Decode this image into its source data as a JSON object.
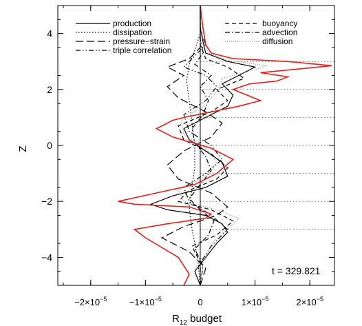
{
  "chart_data": {
    "type": "line",
    "xlabel": "R",
    "xlabel_sub": "12",
    "xlabel_suffix": " budget",
    "ylabel": "Z",
    "xlim": [
      -2.6e-05,
      2.45e-05
    ],
    "ylim": [
      -5,
      5
    ],
    "x_ticks": [
      {
        "value": -2e-05,
        "label_pre": "−2×10",
        "label_exp": "−5"
      },
      {
        "value": -1e-05,
        "label_pre": "−1×10",
        "label_exp": "−5"
      },
      {
        "value": 0,
        "label_pre": "0",
        "label_exp": ""
      },
      {
        "value": 1e-05,
        "label_pre": "1×10",
        "label_exp": "−5"
      },
      {
        "value": 2e-05,
        "label_pre": "2×10",
        "label_exp": "−5"
      }
    ],
    "y_ticks": [
      {
        "value": -4,
        "label": "−4"
      },
      {
        "value": -2,
        "label": "−2"
      },
      {
        "value": 0,
        "label": "0"
      },
      {
        "value": 2,
        "label": "2"
      },
      {
        "value": 4,
        "label": "4"
      }
    ],
    "dotted_hlines": [
      -3,
      -2,
      -1,
      0,
      1,
      2,
      3
    ],
    "annotation": "t = 329.821",
    "legend_placement": "top",
    "series": [
      {
        "name": "production",
        "dash": "solid",
        "color": "#000000",
        "points": [
          [
            0,
            -5
          ],
          [
            -1e-06,
            -4.5
          ],
          [
            1e-06,
            -4
          ],
          [
            3e-06,
            -3.5
          ],
          [
            5e-06,
            -3.1
          ],
          [
            4e-06,
            -2.8
          ],
          [
            1e-06,
            -2.5
          ],
          [
            -6e-06,
            -2.3
          ],
          [
            -9e-06,
            -2.1
          ],
          [
            -5e-06,
            -1.8
          ],
          [
            1e-06,
            -1.5
          ],
          [
            5e-06,
            -1.1
          ],
          [
            4e-06,
            -0.6
          ],
          [
            1e-06,
            -0.2
          ],
          [
            -2e-06,
            0.2
          ],
          [
            -3e-06,
            0.6
          ],
          [
            1e-06,
            1.0
          ],
          [
            5e-06,
            1.4
          ],
          [
            6e-06,
            1.8
          ],
          [
            4e-06,
            2.2
          ],
          [
            7e-06,
            2.5
          ],
          [
            1e-05,
            2.8
          ],
          [
            5e-06,
            3.0
          ],
          [
            1e-06,
            3.3
          ],
          [
            5e-07,
            3.7
          ],
          [
            0,
            4.2
          ],
          [
            0,
            5
          ]
        ]
      },
      {
        "name": "dissipation",
        "dash": "dotted",
        "color": "#000000",
        "points": [
          [
            0,
            -5
          ],
          [
            -5e-07,
            -4
          ],
          [
            -1.5e-06,
            -3
          ],
          [
            -2e-06,
            -2.2
          ],
          [
            -1.5e-06,
            -1.5
          ],
          [
            -1e-06,
            -0.8
          ],
          [
            -1e-06,
            0
          ],
          [
            -1.5e-06,
            0.8
          ],
          [
            -2e-06,
            1.6
          ],
          [
            -2.5e-06,
            2.3
          ],
          [
            -2e-06,
            2.9
          ],
          [
            -1e-06,
            3.4
          ],
          [
            0,
            4
          ],
          [
            0,
            5
          ]
        ]
      },
      {
        "name": "pressure−strain",
        "dash": "longdash",
        "color": "#000000",
        "points": [
          [
            0,
            -5
          ],
          [
            1e-06,
            -4.4
          ],
          [
            -2e-06,
            -3.8
          ],
          [
            -7e-06,
            -3.3
          ],
          [
            -3e-06,
            -2.9
          ],
          [
            3e-06,
            -2.5
          ],
          [
            5e-06,
            -2.2
          ],
          [
            2e-06,
            -1.7
          ],
          [
            -4e-06,
            -1.2
          ],
          [
            -6e-06,
            -0.7
          ],
          [
            -3e-06,
            -0.2
          ],
          [
            2e-06,
            0.3
          ],
          [
            4e-06,
            0.8
          ],
          [
            1e-06,
            1.2
          ],
          [
            -4e-06,
            1.7
          ],
          [
            -6e-06,
            2.1
          ],
          [
            -3e-06,
            2.5
          ],
          [
            -6e-06,
            2.8
          ],
          [
            -2e-06,
            3.1
          ],
          [
            0,
            3.5
          ],
          [
            0,
            5
          ]
        ]
      },
      {
        "name": "triple correlation",
        "dash": "dashdotdot",
        "color": "#000000",
        "points": [
          [
            0,
            -5
          ],
          [
            0,
            -4.2
          ],
          [
            2e-06,
            -3.6
          ],
          [
            5e-06,
            -3.0
          ],
          [
            2e-06,
            -2.5
          ],
          [
            -2e-06,
            -2.0
          ],
          [
            -3e-06,
            -1.5
          ],
          [
            1e-06,
            -1.0
          ],
          [
            4e-06,
            -0.5
          ],
          [
            2e-06,
            0
          ],
          [
            -2e-06,
            0.5
          ],
          [
            -3e-06,
            1.1
          ],
          [
            1e-06,
            1.6
          ],
          [
            3e-06,
            2.1
          ],
          [
            1e-06,
            2.5
          ],
          [
            -3e-06,
            2.8
          ],
          [
            -1e-06,
            3.2
          ],
          [
            1e-06,
            3.6
          ],
          [
            0,
            4.1
          ],
          [
            0,
            5
          ]
        ]
      },
      {
        "name": "buoyancy",
        "dash": "dashed",
        "color": "#000000",
        "points": [
          [
            0,
            -5
          ],
          [
            0,
            -4.2
          ],
          [
            -1.5e-06,
            -3.6
          ],
          [
            3e-06,
            -3.2
          ],
          [
            6e-06,
            -2.7
          ],
          [
            2e-06,
            -2.3
          ],
          [
            -4e-06,
            -2.0
          ],
          [
            -2e-06,
            -1.6
          ],
          [
            3e-06,
            -1.2
          ],
          [
            5e-06,
            -0.8
          ],
          [
            2e-06,
            -0.3
          ],
          [
            -3e-06,
            0.2
          ],
          [
            -4e-06,
            0.7
          ],
          [
            2e-06,
            1.2
          ],
          [
            5e-06,
            1.6
          ],
          [
            3e-06,
            2.0
          ],
          [
            8e-06,
            2.4
          ],
          [
            5e-06,
            2.8
          ],
          [
            1e-06,
            3.1
          ],
          [
            0,
            3.6
          ],
          [
            0,
            5
          ]
        ]
      },
      {
        "name": "advection",
        "dash": "dashdot",
        "color": "#000000",
        "points": [
          [
            0,
            -5
          ],
          [
            5e-07,
            -4.3
          ],
          [
            -1e-06,
            -3.7
          ],
          [
            1.5e-06,
            -3.2
          ],
          [
            2.5e-06,
            -2.7
          ],
          [
            0,
            -2.3
          ],
          [
            -2e-06,
            -1.9
          ],
          [
            0,
            -1.4
          ],
          [
            2e-06,
            -0.9
          ],
          [
            1e-06,
            -0.4
          ],
          [
            -1e-06,
            0.1
          ],
          [
            -1.5e-06,
            0.6
          ],
          [
            5e-07,
            1.1
          ],
          [
            1.5e-06,
            1.6
          ],
          [
            0,
            2.1
          ],
          [
            2e-06,
            2.5
          ],
          [
            -1e-06,
            2.9
          ],
          [
            5e-07,
            3.3
          ],
          [
            0,
            3.8
          ],
          [
            0,
            5
          ]
        ]
      },
      {
        "name": "diffusion",
        "dash": "finedot",
        "color": "#888888",
        "points": [
          [
            0,
            -5
          ],
          [
            5e-07,
            -4.2
          ],
          [
            2e-06,
            -3.5
          ],
          [
            5.5e-06,
            -2.9
          ],
          [
            7e-06,
            -2.6
          ],
          [
            3e-06,
            -2.3
          ],
          [
            -3e-06,
            -2.0
          ],
          [
            -4e-06,
            -1.6
          ],
          [
            1e-06,
            -1.1
          ],
          [
            3e-06,
            -0.6
          ],
          [
            1e-06,
            -0.1
          ],
          [
            -3e-06,
            0.4
          ],
          [
            -3.5e-06,
            0.9
          ],
          [
            5e-07,
            1.4
          ],
          [
            3e-06,
            1.9
          ],
          [
            4e-06,
            2.4
          ],
          [
            1e-05,
            2.7
          ],
          [
            1.2e-05,
            2.85
          ],
          [
            5e-06,
            3.05
          ],
          [
            1.5e-06,
            3.3
          ],
          [
            5e-07,
            3.8
          ],
          [
            0,
            5
          ]
        ]
      },
      {
        "name": "",
        "dash": "solid",
        "color": "#e0201b",
        "points": [
          [
            -3e-06,
            -5
          ],
          [
            -2e-06,
            -4.6
          ],
          [
            -4e-06,
            -4.0
          ],
          [
            -1e-05,
            -3.3
          ],
          [
            -1.2e-05,
            -3.0
          ],
          [
            -6e-06,
            -2.8
          ],
          [
            1e-06,
            -2.6
          ],
          [
            2e-06,
            -2.45
          ],
          [
            -2e-06,
            -2.2
          ],
          [
            -1.2e-05,
            -2.1
          ],
          [
            -1.5e-05,
            -2.0
          ],
          [
            -8e-06,
            -1.7
          ],
          [
            -1e-06,
            -1.4
          ],
          [
            3e-06,
            -1.0
          ],
          [
            6e-06,
            -0.5
          ],
          [
            2e-06,
            -0.1
          ],
          [
            -5e-06,
            0.3
          ],
          [
            -8e-06,
            0.6
          ],
          [
            -5e-06,
            0.9
          ],
          [
            -3e-06,
            1.0
          ],
          [
            2e-06,
            1.2
          ],
          [
            7e-06,
            1.4
          ],
          [
            1.1e-05,
            1.6
          ],
          [
            6e-06,
            2.0
          ],
          [
            9e-06,
            2.2
          ],
          [
            1.4e-05,
            2.3
          ],
          [
            1.6e-05,
            2.45
          ],
          [
            1.1e-05,
            2.6
          ],
          [
            1.9e-05,
            2.75
          ],
          [
            2.4e-05,
            2.85
          ],
          [
            1.6e-05,
            3.0
          ],
          [
            6e-06,
            3.1
          ],
          [
            2e-06,
            3.3
          ],
          [
            1e-06,
            3.6
          ],
          [
            5e-07,
            4.2
          ],
          [
            0,
            5
          ]
        ]
      }
    ]
  }
}
